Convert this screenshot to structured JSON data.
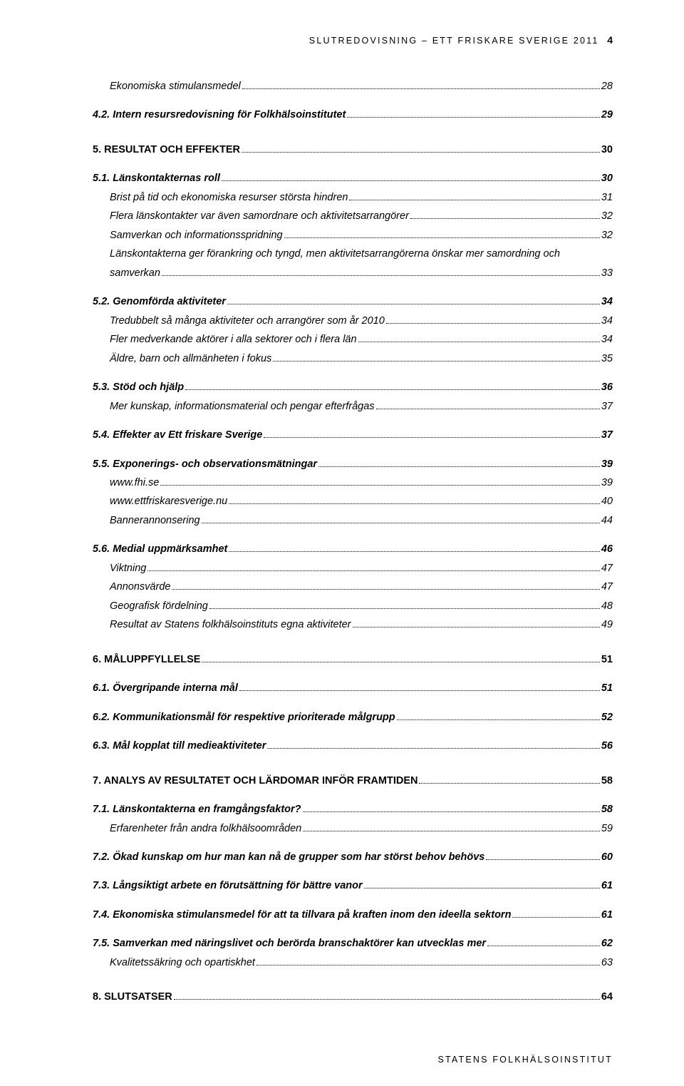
{
  "header": {
    "text": "SLUTREDOVISNING – ETT FRISKARE SVERIGE 2011",
    "page_number": "4"
  },
  "footer": {
    "text": "STATENS FOLKHÄLSOINSTITUT"
  },
  "toc": [
    {
      "level": 3,
      "label": "Ekonomiska stimulansmedel",
      "page": "28"
    },
    {
      "level": 2,
      "label": "4.2. Intern resursredovisning för Folkhälsoinstitutet",
      "page": "29"
    },
    {
      "level": 1,
      "label": "5. RESULTAT OCH EFFEKTER",
      "page": "30"
    },
    {
      "level": 2,
      "label": "5.1. Länskontakternas roll",
      "page": "30"
    },
    {
      "level": 3,
      "label": "Brist på tid och ekonomiska resurser största hindren",
      "page": "31"
    },
    {
      "level": 3,
      "label": "Flera länskontakter var även samordnare och aktivitetsarrangörer",
      "page": "32"
    },
    {
      "level": 3,
      "label": "Samverkan och informationsspridning",
      "page": "32"
    },
    {
      "level": 3,
      "label": "Länskontakterna ger förankring och tyngd, men aktivitetsarrangörerna önskar mer samordning och samverkan",
      "page": "33",
      "wrap": true
    },
    {
      "level": 2,
      "label": "5.2. Genomförda aktiviteter",
      "page": "34"
    },
    {
      "level": 3,
      "label": "Tredubbelt så många aktiviteter och arrangörer som år 2010",
      "page": "34"
    },
    {
      "level": 3,
      "label": "Fler medverkande aktörer i alla sektorer och i flera län",
      "page": "34"
    },
    {
      "level": 3,
      "label": "Äldre, barn och allmänheten i fokus",
      "page": "35"
    },
    {
      "level": 2,
      "label": "5.3. Stöd och hjälp",
      "page": "36"
    },
    {
      "level": 3,
      "label": "Mer kunskap, informationsmaterial och pengar efterfrågas",
      "page": "37"
    },
    {
      "level": 2,
      "label": "5.4. Effekter av Ett friskare Sverige",
      "page": "37"
    },
    {
      "level": 2,
      "label": "5.5. Exponerings- och observationsmätningar",
      "page": "39"
    },
    {
      "level": 3,
      "label": "www.fhi.se",
      "page": "39"
    },
    {
      "level": 3,
      "label": "www.ettfriskaresverige.nu",
      "page": "40"
    },
    {
      "level": 3,
      "label": "Bannerannonsering",
      "page": "44"
    },
    {
      "level": 2,
      "label": "5.6. Medial uppmärksamhet",
      "page": "46"
    },
    {
      "level": 3,
      "label": "Viktning",
      "page": "47"
    },
    {
      "level": 3,
      "label": "Annonsvärde",
      "page": "47"
    },
    {
      "level": 3,
      "label": "Geografisk fördelning",
      "page": "48"
    },
    {
      "level": 3,
      "label": "Resultat av Statens folkhälsoinstituts egna aktiviteter",
      "page": "49"
    },
    {
      "level": 1,
      "label": "6. MÅLUPPFYLLELSE",
      "page": "51"
    },
    {
      "level": 2,
      "label": "6.1. Övergripande interna mål",
      "page": "51"
    },
    {
      "level": 2,
      "label": "6.2. Kommunikationsmål för respektive prioriterade målgrupp",
      "page": "52"
    },
    {
      "level": 2,
      "label": "6.3. Mål kopplat till medieaktiviteter",
      "page": "56"
    },
    {
      "level": 1,
      "label": "7. ANALYS AV RESULTATET OCH LÄRDOMAR INFÖR FRAMTIDEN",
      "page": "58"
    },
    {
      "level": 2,
      "label": "7.1. Länskontakterna en framgångsfaktor?",
      "page": "58"
    },
    {
      "level": 3,
      "label": "Erfarenheter från andra folkhälsoområden",
      "page": "59"
    },
    {
      "level": 2,
      "label": "7.2. Ökad kunskap om hur man kan nå de grupper som har störst behov behövs",
      "page": "60"
    },
    {
      "level": 2,
      "label": "7.3. Långsiktigt arbete en förutsättning för bättre vanor",
      "page": "61"
    },
    {
      "level": 2,
      "label": "7.4. Ekonomiska stimulansmedel för att ta tillvara på kraften inom den ideella sektorn",
      "page": "61"
    },
    {
      "level": 2,
      "label": "7.5. Samverkan med näringslivet och berörda branschaktörer kan utvecklas mer",
      "page": "62"
    },
    {
      "level": 3,
      "label": "Kvalitetssäkring och opartiskhet",
      "page": "63"
    },
    {
      "level": 1,
      "label": "8. SLUTSATSER",
      "page": "64"
    }
  ]
}
